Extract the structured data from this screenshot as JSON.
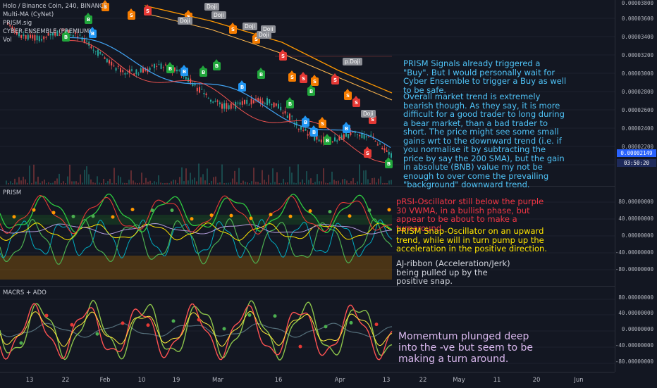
{
  "symbol": {
    "title": "Holo / Binance Coin, 240, BINANCE",
    "indicators": [
      "Multi-MA (CyNet)",
      "PRISM.sig",
      "CYBER ENSEMBLE (PREMIUM)",
      "Vol"
    ]
  },
  "price_axis": {
    "ticks": [
      "0.00003800",
      "0.00003600",
      "0.00003400",
      "0.00003200",
      "0.00003000",
      "0.00002800",
      "0.00002600",
      "0.00002400",
      "0.00002200"
    ],
    "last_price": "0.00002149",
    "countdown": "03:50:20"
  },
  "prism_pane": {
    "label": "PRISM",
    "ticks": [
      "80.00000000",
      "40.00000000",
      "0.00000000",
      "-40.00000000",
      "-80.00000000"
    ]
  },
  "macrs_pane": {
    "label": "MACRS + ADO",
    "ticks": [
      "80.00000000",
      "40.00000000",
      "0.00000000",
      "-40.00000000",
      "-80.00000000"
    ]
  },
  "time_axis": {
    "ticks": [
      "13",
      "22",
      "Feb",
      "10",
      "19",
      "Mar",
      "16",
      "Apr",
      "13",
      "22",
      "May",
      "11",
      "20",
      "Jun"
    ]
  },
  "annotations": {
    "main_1": "PRISM Signals already triggered a \"Buy\". But I would personally wait for Cyber Ensemble to trigger a Buy as well to be safe.",
    "main_2": "Overall market trend is extremely bearish though. As they say, it is more difficult for a good trader to long during a bear market, than a bad trader to short. The price might see some small gains wrt to the downward trend (i.e. if you normalise it by subtracting the price by say the 200 SMA), but the gain in absolute (BNB) value my not be enough to over come the prevailing \"background\" downward trend.",
    "prism_1": "pRSI-Oscillator still below the purple 30 VWMA, in a bullish phase, but appear to be about to make a turnaround.",
    "prism_2": "PRISM Snap-Oscillator on an upward trend, while will in turn pump up the acceleration in the positive direction.",
    "prism_3": "AJ-ribbon (Acceleration/Jerk) being pulled up by the positive snap.",
    "macrs_1": "Momemtum plunged deep into the -ve but seem to be making a turn around."
  },
  "markers": {
    "buy": "B",
    "sell": "S",
    "doji": "Doji",
    "pdoji": "p.Doji"
  },
  "colors": {
    "background": "#131722",
    "up": "#26a69a",
    "down": "#ef5350",
    "ma_orange": "#ff9800",
    "ma_blue": "#42a5f5",
    "buy_green": "#21a63c",
    "buy_blue": "#2196f3",
    "sell_red": "#e53935",
    "sell_orange": "#f57c00"
  }
}
